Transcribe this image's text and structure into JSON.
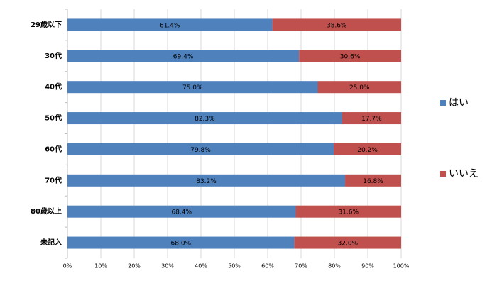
{
  "chart_data": {
    "type": "stacked_bar_100_horizontal",
    "categories": [
      "29歳以下",
      "30代",
      "40代",
      "50代",
      "60代",
      "70代",
      "80歳以上",
      "未記入"
    ],
    "series": [
      {
        "name": "はい",
        "color": "#4f81bd",
        "values": [
          61.4,
          69.4,
          75.0,
          82.3,
          79.8,
          83.2,
          68.4,
          68.0
        ],
        "value_labels": [
          "61.4%",
          "69.4%",
          "75.0%",
          "82.3%",
          "79.8%",
          "83.2%",
          "68.4%",
          "68.0%"
        ]
      },
      {
        "name": "いいえ",
        "color": "#c0504d",
        "values": [
          38.6,
          30.6,
          25.0,
          17.7,
          20.2,
          16.8,
          31.6,
          32.0
        ],
        "value_labels": [
          "38.6%",
          "30.6%",
          "25.0%",
          "17.7%",
          "20.2%",
          "16.8%",
          "31.6%",
          "32.0%"
        ]
      }
    ],
    "xlim": [
      0,
      100
    ],
    "xticks": [
      {
        "value": 0,
        "label": "0%"
      },
      {
        "value": 10,
        "label": "10%"
      },
      {
        "value": 20,
        "label": "20%"
      },
      {
        "value": 30,
        "label": "30%"
      },
      {
        "value": 40,
        "label": "40%"
      },
      {
        "value": 50,
        "label": "50%"
      },
      {
        "value": 60,
        "label": "60%"
      },
      {
        "value": 70,
        "label": "70%"
      },
      {
        "value": 80,
        "label": "80%"
      },
      {
        "value": 90,
        "label": "90%"
      },
      {
        "value": 100,
        "label": "100%"
      }
    ],
    "grid": true,
    "legend": "right"
  }
}
